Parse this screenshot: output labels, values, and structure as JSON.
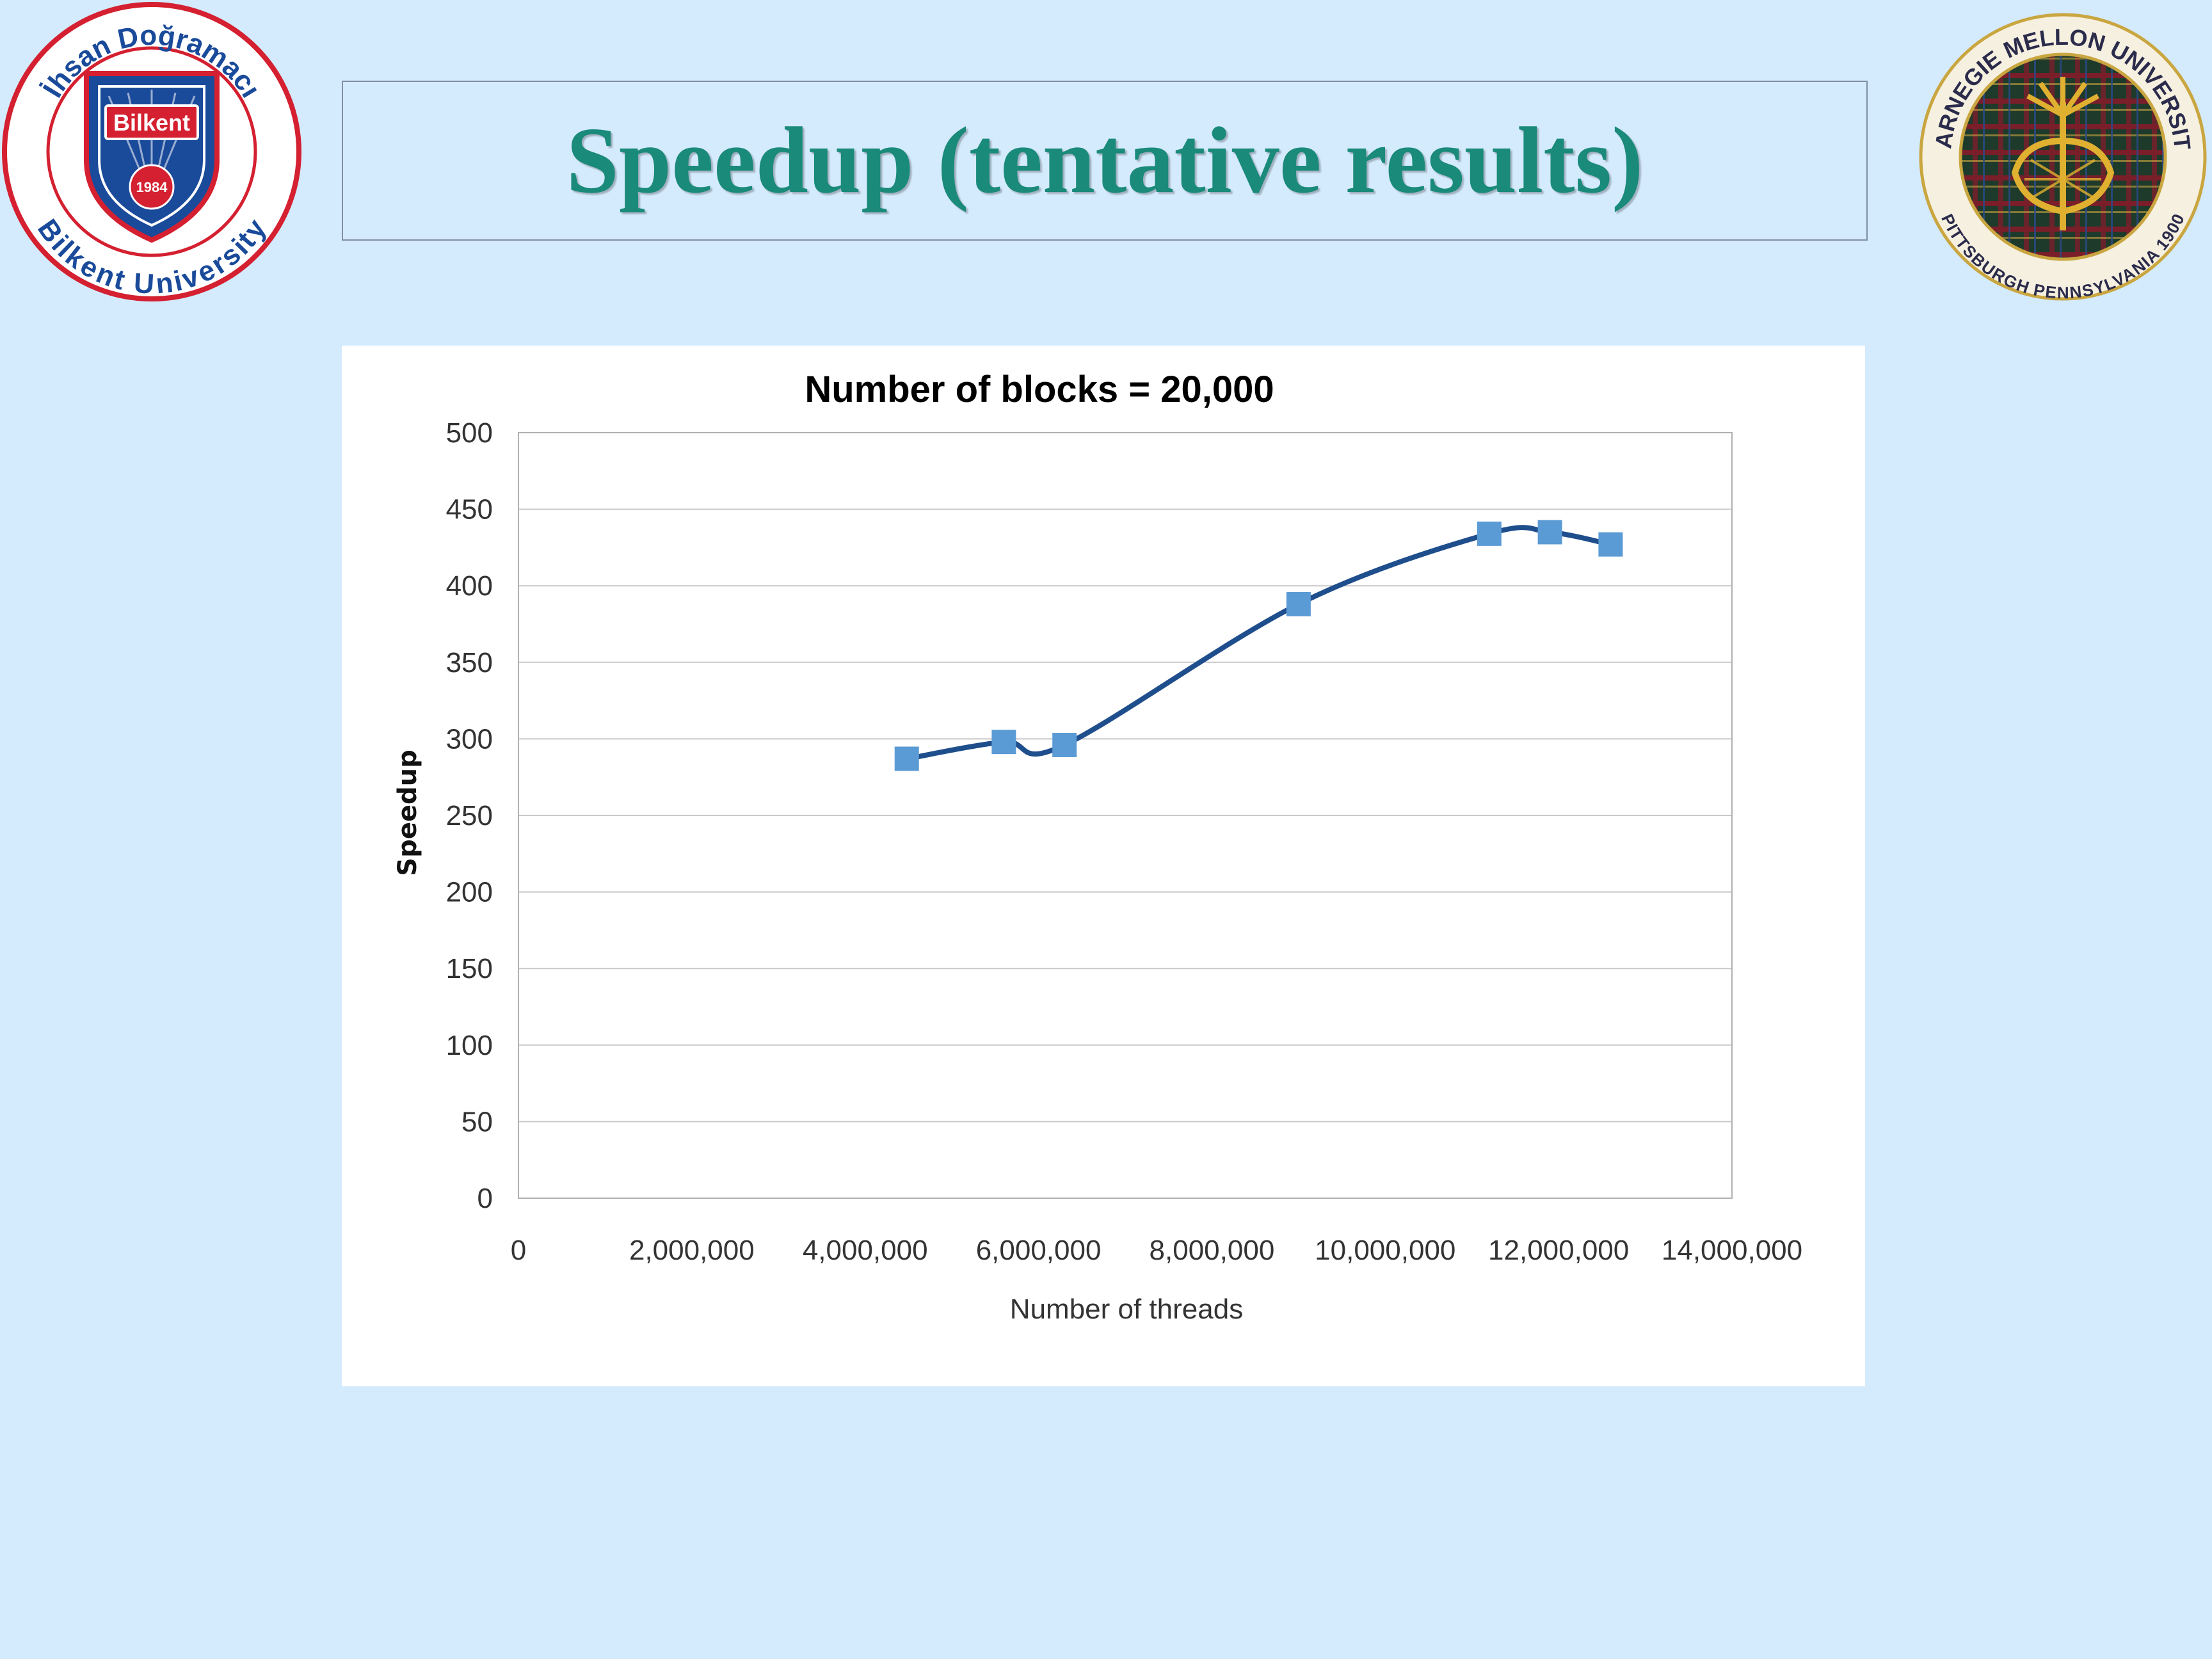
{
  "slide": {
    "title": "Speedup (tentative results)",
    "logo_left": {
      "name": "bilkent-logo",
      "text_top": "İhsan Doğramacı",
      "text_bottom": "Bilkent University",
      "shield_text": "Bilkent",
      "year": "1984"
    },
    "logo_right": {
      "name": "cmu-seal",
      "text_top": "CARNEGIE MELLON UNIVERSITY",
      "text_bottom": "PITTSBURGH PENNSYLVANIA 1900"
    }
  },
  "colors": {
    "background": "#d4eafd",
    "title": "#1a8a7a",
    "line": "#1f4e8c",
    "marker": "#5b9bd5",
    "grid": "#c8c8c8"
  },
  "chart_data": {
    "type": "line",
    "title": "Number of blocks = 20,000",
    "xlabel": "Number of threads",
    "ylabel": "Speedup",
    "xlim": [
      0,
      14000000
    ],
    "ylim": [
      0,
      500
    ],
    "xticks": [
      0,
      2000000,
      4000000,
      6000000,
      8000000,
      10000000,
      12000000,
      14000000
    ],
    "xtick_labels": [
      "0",
      "2,000,000",
      "4,000,000",
      "6,000,000",
      "8,000,000",
      "10,000,000",
      "12,000,000",
      "14,000,000"
    ],
    "yticks": [
      0,
      50,
      100,
      150,
      200,
      250,
      300,
      350,
      400,
      450,
      500
    ],
    "ytick_labels": [
      "0",
      "50",
      "100",
      "150",
      "200",
      "250",
      "300",
      "350",
      "400",
      "450",
      "500"
    ],
    "grid": true,
    "smooth": true,
    "series": [
      {
        "x": [
          4480000,
          5600000,
          6300000,
          9000000,
          11200000,
          11900000,
          12600000
        ],
        "y": [
          287,
          298,
          296,
          388,
          434,
          435,
          427
        ]
      }
    ]
  }
}
